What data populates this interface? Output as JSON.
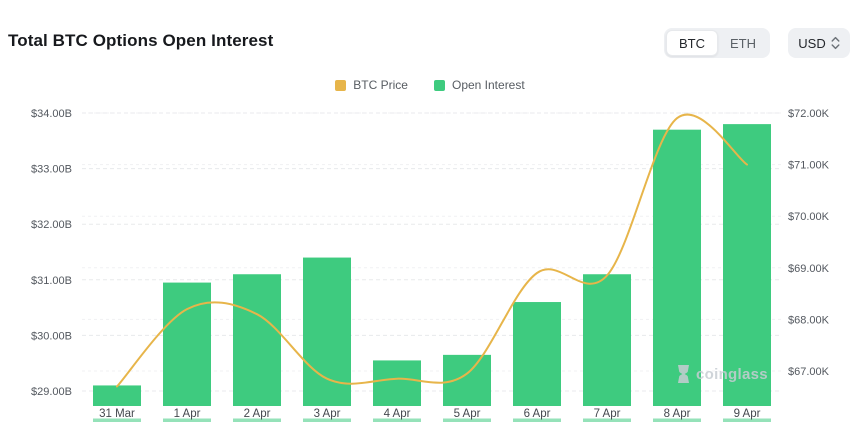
{
  "header": {
    "title": "Total BTC Options Open Interest",
    "asset_toggle": {
      "options": [
        "BTC",
        "ETH"
      ],
      "selected": "BTC"
    },
    "currency_selector": {
      "value": "USD"
    }
  },
  "watermark": {
    "text": "coinglass"
  },
  "chart_data": {
    "type": "bar+line",
    "categories": [
      "31 Mar",
      "1 Apr",
      "2 Apr",
      "3 Apr",
      "4 Apr",
      "5 Apr",
      "6 Apr",
      "7 Apr",
      "8 Apr",
      "9 Apr"
    ],
    "series": [
      {
        "name": "BTC Price",
        "type": "line",
        "y_axis": "right",
        "color": "#e7b54a",
        "values_usd_thousands": [
          66.7,
          68.2,
          68.1,
          66.85,
          66.85,
          66.95,
          68.9,
          68.85,
          71.9,
          71.0
        ]
      },
      {
        "name": "Open Interest",
        "type": "bar",
        "y_axis": "left",
        "color": "#3ecb7f",
        "values_usd_billions": [
          29.1,
          30.95,
          31.1,
          31.4,
          29.55,
          29.65,
          30.6,
          31.1,
          33.7,
          33.8
        ]
      }
    ],
    "left_axis": {
      "ticks": [
        "$34.00B",
        "$33.00B",
        "$32.00B",
        "$31.00B",
        "$30.00B",
        "$29.00B"
      ],
      "max": 34,
      "min": 29
    },
    "right_axis": {
      "ticks": [
        "$72.00K",
        "$71.00K",
        "$70.00K",
        "$69.00K",
        "$68.00K",
        "$67.00K"
      ],
      "max": 72,
      "min": 67
    },
    "grid": "dashed",
    "legend_position": "top-center"
  }
}
